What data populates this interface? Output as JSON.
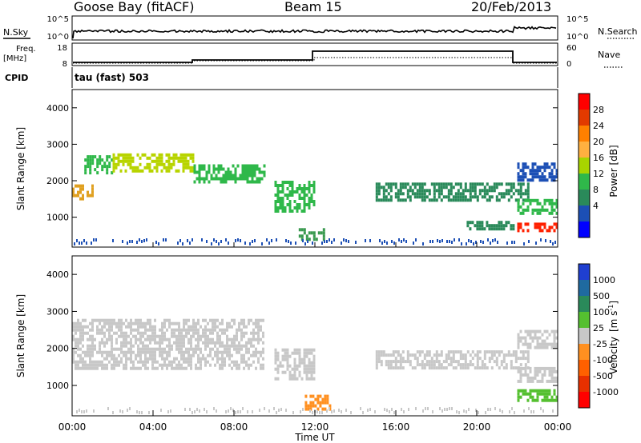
{
  "header": {
    "station": "Goose Bay (fitACF)",
    "beam": "Beam 15",
    "date": "20/Feb/2013"
  },
  "top_panels": {
    "nsky_label": "N.Sky",
    "nsky_ticks": [
      "10^5",
      "10^0"
    ],
    "nsearch_label": "N.Search",
    "nsearch_ticks": [
      "10^5",
      "10^0"
    ],
    "freq_label": "Freq.",
    "freq_unit": "[MHz]",
    "freq_ticks": [
      "18",
      "8"
    ],
    "nave_label": "Nave",
    "nave_ticks": [
      "60",
      "0"
    ],
    "cpid_label": "CPID",
    "cpid_value": "tau (fast) 503"
  },
  "chart_data": [
    {
      "type": "heatmap",
      "name": "power-panel",
      "ylabel": "Slant Range [km]",
      "yticks": [
        "4000",
        "3000",
        "2000",
        "1000"
      ],
      "ylim": [
        180,
        4500
      ],
      "xlim": [
        0,
        24
      ],
      "colorbar": {
        "label": "Power [dB]",
        "ticks": [
          "28",
          "24",
          "20",
          "16",
          "12",
          "8",
          "4"
        ],
        "colors": [
          "#ff0000",
          "#e23a00",
          "#ff8000",
          "#ffb040",
          "#a8d400",
          "#2fb84a",
          "#2a8a5a",
          "#1c4fb5",
          "#0000ff"
        ]
      },
      "features": [
        {
          "kind": "band",
          "x": [
            0.0,
            1.0
          ],
          "range": [
            1500,
            1900
          ],
          "color": "#e0a020"
        },
        {
          "kind": "band",
          "x": [
            0.6,
            2.0
          ],
          "range": [
            2200,
            2700
          ],
          "color": "#2fb84a"
        },
        {
          "kind": "band",
          "x": [
            2.0,
            6.0
          ],
          "range": [
            2300,
            2750
          ],
          "color": "#b8d400"
        },
        {
          "kind": "band",
          "x": [
            6.0,
            9.5
          ],
          "range": [
            2000,
            2450
          ],
          "color": "#2fb84a"
        },
        {
          "kind": "band",
          "x": [
            10.0,
            12.0
          ],
          "range": [
            1200,
            2000
          ],
          "color": "#2fb84a"
        },
        {
          "kind": "band",
          "x": [
            11.2,
            12.5
          ],
          "range": [
            400,
            700
          ],
          "color": "#3a9a50"
        },
        {
          "kind": "band",
          "x": [
            15.0,
            22.5
          ],
          "range": [
            1500,
            1950
          ],
          "color": "#2a8a5a"
        },
        {
          "kind": "band",
          "x": [
            19.5,
            21.8
          ],
          "range": [
            700,
            900
          ],
          "color": "#2a8a5a"
        },
        {
          "kind": "band",
          "x": [
            22.0,
            24.0
          ],
          "range": [
            600,
            850
          ],
          "color": "#ff2000"
        },
        {
          "kind": "band",
          "x": [
            22.0,
            24.0
          ],
          "range": [
            1100,
            1500
          ],
          "color": "#2fb84a"
        },
        {
          "kind": "band",
          "x": [
            22.0,
            24.0
          ],
          "range": [
            2000,
            2500
          ],
          "color": "#1c4fb5"
        }
      ]
    },
    {
      "type": "heatmap",
      "name": "velocity-panel",
      "ylabel": "Slant Range [km]",
      "yticks": [
        "4000",
        "3000",
        "2000",
        "1000"
      ],
      "ylim": [
        180,
        4500
      ],
      "xlim": [
        0,
        24
      ],
      "xticks": [
        "00:00",
        "04:00",
        "08:00",
        "12:00",
        "16:00",
        "20:00",
        "00:00"
      ],
      "xlabel": "Time UT",
      "colorbar": {
        "label": "Velocity",
        "unit": "[m s",
        "unit_exp": "-1",
        "unit_end": "]",
        "ticks": [
          "1000",
          "500",
          "100",
          "25",
          "-25",
          "-100",
          "-500",
          "-1000"
        ],
        "colors": [
          "#1f3fd0",
          "#1f6aa0",
          "#2a8a5a",
          "#55c030",
          "#c8c8c8",
          "#ff9020",
          "#ff6000",
          "#e83000",
          "#ff0000"
        ]
      },
      "features": [
        {
          "kind": "band",
          "x": [
            0.0,
            9.5
          ],
          "range": [
            1500,
            2800
          ],
          "color": "#c8c8c8"
        },
        {
          "kind": "band",
          "x": [
            10.0,
            12.0
          ],
          "range": [
            1200,
            2000
          ],
          "color": "#c8c8c8"
        },
        {
          "kind": "band",
          "x": [
            11.5,
            12.8
          ],
          "range": [
            350,
            750
          ],
          "color": "#ff9020"
        },
        {
          "kind": "band",
          "x": [
            15.0,
            22.5
          ],
          "range": [
            1500,
            1950
          ],
          "color": "#c8c8c8"
        },
        {
          "kind": "band",
          "x": [
            22.0,
            24.0
          ],
          "range": [
            600,
            900
          ],
          "color": "#55c030"
        },
        {
          "kind": "band",
          "x": [
            22.0,
            24.0
          ],
          "range": [
            1100,
            1500
          ],
          "color": "#c8c8c8"
        },
        {
          "kind": "band",
          "x": [
            22.0,
            24.0
          ],
          "range": [
            2000,
            2500
          ],
          "color": "#c8c8c8"
        }
      ]
    }
  ]
}
